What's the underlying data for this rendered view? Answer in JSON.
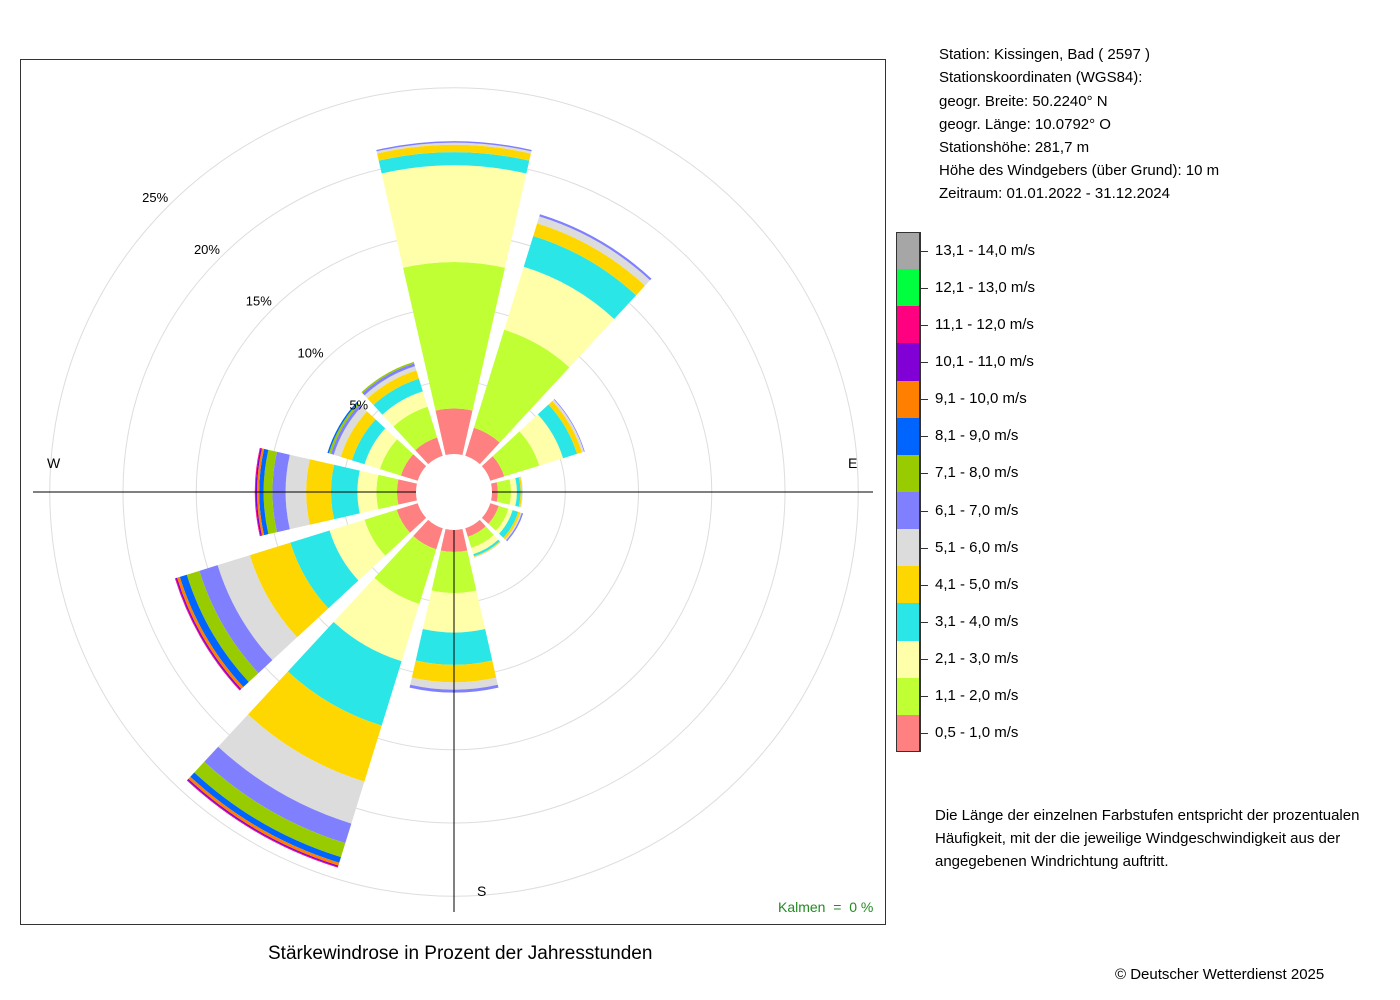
{
  "station": {
    "line1": "Station:  Kissingen, Bad  ( 2597 )",
    "line2": "Stationskoordinaten (WGS84):",
    "line3": "geogr. Breite: 50.2240° N",
    "line4": "geogr. Länge: 10.0792° O",
    "line5": "Stationshöhe: 281,7 m",
    "line6": "Höhe des Windgebers (über Grund): 10 m",
    "line7": "Zeitraum: 01.01.2022 - 31.12.2024"
  },
  "legend": [
    {
      "label": "13,1 - 14,0 m/s",
      "color": "#A6A6A6"
    },
    {
      "label": "12,1 - 13,0 m/s",
      "color": "#00FF3E"
    },
    {
      "label": "11,1 - 12,0 m/s",
      "color": "#FF0080"
    },
    {
      "label": "10,1 - 11,0 m/s",
      "color": "#8000D6"
    },
    {
      "label": "9,1 - 10,0 m/s",
      "color": "#FF8000"
    },
    {
      "label": "8,1 - 9,0 m/s",
      "color": "#0064FF"
    },
    {
      "label": "7,1 - 8,0 m/s",
      "color": "#99CC00"
    },
    {
      "label": "6,1 - 7,0 m/s",
      "color": "#8080FF"
    },
    {
      "label": "5,1 - 6,0 m/s",
      "color": "#DCDCDC"
    },
    {
      "label": "4,1 - 5,0 m/s",
      "color": "#FFD700"
    },
    {
      "label": "3,1 - 4,0 m/s",
      "color": "#2BE6E6"
    },
    {
      "label": "2,1 - 3,0 m/s",
      "color": "#FFFFAA"
    },
    {
      "label": "1,1 - 2,0 m/s",
      "color": "#BFFF33"
    },
    {
      "label": "0,5 - 1,0 m/s",
      "color": "#FF8080"
    }
  ],
  "note": "Die Länge der einzelnen Farbstufen entspricht der prozentualen Häufigkeit, mit der die jeweilige Windgeschwindigkeit aus der angegebenen Windrichtung auftritt.",
  "caption": "Stärkewindrose in Prozent der Jahresstunden",
  "copyright": "© Deutscher Wetterdienst  2025",
  "calm": "Kalmen  =  0 %",
  "chart_data": {
    "type": "windrose",
    "unit": "%",
    "radial_ticks": [
      5,
      10,
      15,
      20,
      25
    ],
    "radial_tick_labels": [
      "5%",
      "10%",
      "15%",
      "20%",
      "25%"
    ],
    "direction_labels": {
      "W": "W",
      "E": "E",
      "S": "S"
    },
    "calm_percent": 0,
    "sector_width_deg": 30,
    "speed_classes": [
      "0,5 - 1,0 m/s",
      "1,1 - 2,0 m/s",
      "2,1 - 3,0 m/s",
      "3,1 - 4,0 m/s",
      "4,1 - 5,0 m/s",
      "5,1 - 6,0 m/s",
      "6,1 - 7,0 m/s",
      "7,1 - 8,0 m/s",
      "8,1 - 9,0 m/s",
      "9,1 - 10,0 m/s",
      "10,1 - 11,0 m/s",
      "11,1 - 12,0 m/s",
      "12,1 - 13,0 m/s",
      "13,1 - 14,0 m/s"
    ],
    "class_colors": [
      "#FF8080",
      "#BFFF33",
      "#FFFFAA",
      "#2BE6E6",
      "#FFD700",
      "#DCDCDC",
      "#8080FF",
      "#99CC00",
      "#0064FF",
      "#FF8000",
      "#8000D6",
      "#FF0080",
      "#00FF3E",
      "#A6A6A6"
    ],
    "sectors": [
      {
        "direction": 0,
        "values": [
          3.1,
          10.0,
          6.6,
          0.9,
          0.5,
          0.15,
          0.1,
          0,
          0,
          0,
          0,
          0,
          0,
          0
        ]
      },
      {
        "direction": 30,
        "values": [
          2.0,
          7.0,
          4.5,
          2.2,
          0.9,
          0.5,
          0.15,
          0,
          0,
          0,
          0,
          0,
          0,
          0
        ]
      },
      {
        "direction": 60,
        "values": [
          1.0,
          2.5,
          1.7,
          1.0,
          0.35,
          0.15,
          0.05,
          0,
          0,
          0,
          0,
          0,
          0,
          0
        ]
      },
      {
        "direction": 90,
        "values": [
          0.4,
          0.9,
          0.4,
          0.25,
          0.1,
          0.05,
          0,
          0,
          0,
          0,
          0,
          0,
          0,
          0
        ]
      },
      {
        "direction": 120,
        "values": [
          0.6,
          0.7,
          0.3,
          0.4,
          0.15,
          0.1,
          0.1,
          0,
          0,
          0,
          0,
          0,
          0,
          0
        ]
      },
      {
        "direction": 150,
        "values": [
          0.6,
          0.8,
          0.45,
          0.15,
          0.05,
          0.05,
          0,
          0,
          0,
          0,
          0,
          0,
          0,
          0
        ]
      },
      {
        "direction": 180,
        "values": [
          1.5,
          2.8,
          2.7,
          2.2,
          1.2,
          0.5,
          0.2,
          0,
          0,
          0,
          0,
          0,
          0,
          0
        ]
      },
      {
        "direction": 210,
        "values": [
          1.5,
          3.9,
          4.1,
          4.6,
          4.0,
          3.0,
          1.4,
          1.0,
          0.4,
          0.2,
          0.1,
          0.05,
          0,
          0
        ]
      },
      {
        "direction": 240,
        "values": [
          1.5,
          2.3,
          2.5,
          2.8,
          2.9,
          2.3,
          1.3,
          0.9,
          0.5,
          0.2,
          0.1,
          0.05,
          0,
          0
        ]
      },
      {
        "direction": 270,
        "values": [
          1.3,
          1.4,
          1.3,
          1.8,
          1.7,
          1.4,
          0.9,
          0.6,
          0.3,
          0.15,
          0.1,
          0.05,
          0,
          0
        ]
      },
      {
        "direction": 300,
        "values": [
          1.2,
          1.5,
          1.1,
          0.9,
          0.8,
          0.5,
          0.2,
          0.15,
          0.1,
          0,
          0,
          0,
          0,
          0
        ]
      },
      {
        "direction": 330,
        "values": [
          1.3,
          2.2,
          1.1,
          0.9,
          0.6,
          0.3,
          0.2,
          0.1,
          0,
          0,
          0,
          0,
          0,
          0
        ]
      }
    ]
  }
}
